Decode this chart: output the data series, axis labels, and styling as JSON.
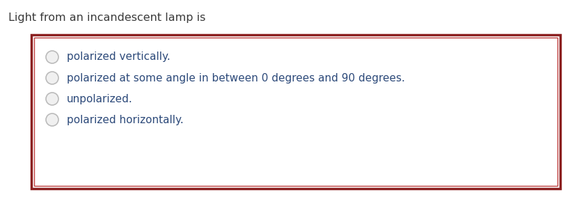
{
  "title": "Light from an incandescent lamp is",
  "title_color": "#3a3a3a",
  "title_fontsize": 11.5,
  "options": [
    "polarized vertically.",
    "polarized at some angle in between 0 degrees and 90 degrees.",
    "unpolarized.",
    "polarized horizontally."
  ],
  "option_color": "#2d4a7a",
  "option_fontsize": 11,
  "radio_edge_color": "#bbbbbb",
  "radio_fill": "#f0f0f0",
  "box_edge_color_outer": "#8b2020",
  "box_edge_color_inner": "#c04040",
  "background_color": "#ffffff",
  "fig_width": 8.2,
  "fig_height": 2.83
}
